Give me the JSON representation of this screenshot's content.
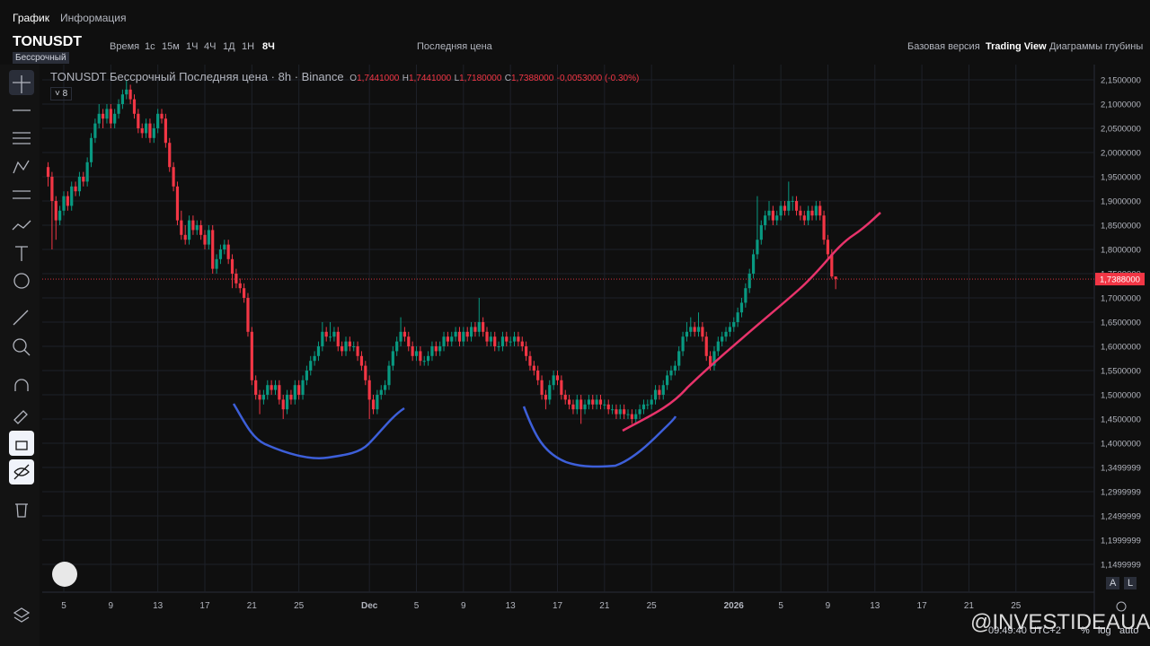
{
  "ui": {
    "tabs": [
      "График",
      "Информация"
    ],
    "symbol": "TONUSDT",
    "symbol_badge": "Бессрочный",
    "toolbar": [
      "Время",
      "1с",
      "15м",
      "1Ч",
      "4Ч",
      "1Д",
      "1Н",
      "8Ч",
      "Последняя цена"
    ],
    "right_links": [
      "Базовая версия",
      "Trading View",
      "Диаграммы глубины"
    ],
    "legend": {
      "title": "TONUSDT Бессрочный Последняя цена · 8h · Binance",
      "o_label": "O",
      "o": "1,7441000",
      "h_label": "H",
      "h": "1,7441000",
      "l_label": "L",
      "l": "1,7180000",
      "c_label": "C",
      "c": "1,7388000",
      "change": "-0,0053000 (-0.30%)"
    },
    "indicator_count": "8",
    "scale_buttons": [
      "A",
      "L"
    ],
    "footer": {
      "time": "09:49:40 UTC+2",
      "percent": "%",
      "log": "log",
      "auto": "auto"
    },
    "watermark": "@INVESTIDEAUA"
  },
  "chart_data": {
    "type": "candlestick",
    "up_color": "#089981",
    "down_color": "#f23645",
    "grid": true,
    "xlim": [
      -1.5,
      267
    ],
    "ylim": [
      1.0926,
      2.1815
    ],
    "xticks": [
      {
        "value": 4,
        "label": "5"
      },
      {
        "value": 16,
        "label": "9"
      },
      {
        "value": 28,
        "label": "13"
      },
      {
        "value": 40,
        "label": "17"
      },
      {
        "value": 52,
        "label": "21"
      },
      {
        "value": 64,
        "label": "25"
      },
      {
        "value": 82,
        "label": "Dec"
      },
      {
        "value": 94,
        "label": "5"
      },
      {
        "value": 106,
        "label": "9"
      },
      {
        "value": 118,
        "label": "13"
      },
      {
        "value": 130,
        "label": "17"
      },
      {
        "value": 142,
        "label": "21"
      },
      {
        "value": 154,
        "label": "25"
      },
      {
        "value": 175,
        "label": "2026"
      },
      {
        "value": 187,
        "label": "5"
      },
      {
        "value": 199,
        "label": "9"
      },
      {
        "value": 211,
        "label": "13"
      },
      {
        "value": 223,
        "label": "17"
      },
      {
        "value": 235,
        "label": "21"
      },
      {
        "value": 247,
        "label": "25"
      }
    ],
    "yticks": [
      {
        "value": 2.15,
        "label": "2,1500000"
      },
      {
        "value": 2.1,
        "label": "2,1000000"
      },
      {
        "value": 2.05,
        "label": "2,0500000"
      },
      {
        "value": 2.0,
        "label": "2,0000000"
      },
      {
        "value": 1.95,
        "label": "1,9500000"
      },
      {
        "value": 1.9,
        "label": "1,9000000"
      },
      {
        "value": 1.85,
        "label": "1,8500000"
      },
      {
        "value": 1.8,
        "label": "1,8000000"
      },
      {
        "value": 1.75,
        "label": "1,7500000"
      },
      {
        "value": 1.7,
        "label": "1,7000000"
      },
      {
        "value": 1.65,
        "label": "1,6500000"
      },
      {
        "value": 1.6,
        "label": "1,6000000"
      },
      {
        "value": 1.55,
        "label": "1,5500000"
      },
      {
        "value": 1.5,
        "label": "1,5000000"
      },
      {
        "value": 1.45,
        "label": "1,4500000"
      },
      {
        "value": 1.4,
        "label": "1,4000000"
      },
      {
        "value": 1.35,
        "label": "1,3499999"
      },
      {
        "value": 1.3,
        "label": "1,2999999"
      },
      {
        "value": 1.25,
        "label": "1,2499999"
      },
      {
        "value": 1.2,
        "label": "1,1999999"
      },
      {
        "value": 1.15,
        "label": "1,1499999"
      }
    ],
    "last_price": {
      "value": 1.7388,
      "label": "1,7388000"
    },
    "candles": [
      [
        1.97,
        1.98,
        1.93,
        1.95
      ],
      [
        1.95,
        1.96,
        1.8,
        1.9
      ],
      [
        1.9,
        1.91,
        1.82,
        1.86
      ],
      [
        1.86,
        1.89,
        1.85,
        1.88
      ],
      [
        1.88,
        1.92,
        1.87,
        1.91
      ],
      [
        1.91,
        1.92,
        1.88,
        1.89
      ],
      [
        1.89,
        1.94,
        1.88,
        1.93
      ],
      [
        1.93,
        1.94,
        1.91,
        1.92
      ],
      [
        1.92,
        1.96,
        1.91,
        1.95
      ],
      [
        1.95,
        1.96,
        1.93,
        1.94
      ],
      [
        1.94,
        1.99,
        1.93,
        1.98
      ],
      [
        1.98,
        2.04,
        1.97,
        2.03
      ],
      [
        2.03,
        2.07,
        2.02,
        2.06
      ],
      [
        2.06,
        2.1,
        2.05,
        2.08
      ],
      [
        2.08,
        2.09,
        2.05,
        2.07
      ],
      [
        2.07,
        2.1,
        2.06,
        2.09
      ],
      [
        2.09,
        2.1,
        2.05,
        2.06
      ],
      [
        2.06,
        2.09,
        2.05,
        2.08
      ],
      [
        2.08,
        2.11,
        2.07,
        2.1
      ],
      [
        2.1,
        2.13,
        2.09,
        2.12
      ],
      [
        2.12,
        2.15,
        2.11,
        2.13
      ],
      [
        2.13,
        2.14,
        2.1,
        2.11
      ],
      [
        2.11,
        2.12,
        2.07,
        2.08
      ],
      [
        2.08,
        2.09,
        2.04,
        2.05
      ],
      [
        2.05,
        2.06,
        2.03,
        2.04
      ],
      [
        2.04,
        2.07,
        2.03,
        2.06
      ],
      [
        2.06,
        2.07,
        2.02,
        2.03
      ],
      [
        2.03,
        2.06,
        2.02,
        2.05
      ],
      [
        2.05,
        2.09,
        2.04,
        2.08
      ],
      [
        2.08,
        2.09,
        2.06,
        2.07
      ],
      [
        2.07,
        2.08,
        2.01,
        2.02
      ],
      [
        2.02,
        2.03,
        1.96,
        1.97
      ],
      [
        1.97,
        1.98,
        1.92,
        1.93
      ],
      [
        1.93,
        1.94,
        1.85,
        1.86
      ],
      [
        1.86,
        1.88,
        1.82,
        1.83
      ],
      [
        1.83,
        1.85,
        1.81,
        1.82
      ],
      [
        1.82,
        1.87,
        1.81,
        1.86
      ],
      [
        1.86,
        1.87,
        1.83,
        1.84
      ],
      [
        1.84,
        1.86,
        1.83,
        1.85
      ],
      [
        1.85,
        1.86,
        1.82,
        1.83
      ],
      [
        1.83,
        1.84,
        1.8,
        1.81
      ],
      [
        1.81,
        1.85,
        1.8,
        1.84
      ],
      [
        1.84,
        1.85,
        1.75,
        1.76
      ],
      [
        1.76,
        1.79,
        1.75,
        1.78
      ],
      [
        1.78,
        1.81,
        1.77,
        1.8
      ],
      [
        1.8,
        1.82,
        1.79,
        1.81
      ],
      [
        1.81,
        1.82,
        1.77,
        1.78
      ],
      [
        1.78,
        1.79,
        1.72,
        1.75
      ],
      [
        1.75,
        1.76,
        1.72,
        1.73
      ],
      [
        1.73,
        1.74,
        1.71,
        1.72
      ],
      [
        1.72,
        1.73,
        1.69,
        1.7
      ],
      [
        1.7,
        1.71,
        1.62,
        1.63
      ],
      [
        1.63,
        1.64,
        1.52,
        1.53
      ],
      [
        1.53,
        1.54,
        1.49,
        1.5
      ],
      [
        1.5,
        1.51,
        1.46,
        1.49
      ],
      [
        1.49,
        1.51,
        1.48,
        1.5
      ],
      [
        1.5,
        1.53,
        1.49,
        1.52
      ],
      [
        1.52,
        1.53,
        1.5,
        1.51
      ],
      [
        1.51,
        1.53,
        1.5,
        1.52
      ],
      [
        1.52,
        1.53,
        1.48,
        1.49
      ],
      [
        1.49,
        1.5,
        1.45,
        1.47
      ],
      [
        1.47,
        1.51,
        1.46,
        1.5
      ],
      [
        1.5,
        1.51,
        1.48,
        1.49
      ],
      [
        1.49,
        1.53,
        1.48,
        1.52
      ],
      [
        1.52,
        1.53,
        1.49,
        1.5
      ],
      [
        1.5,
        1.54,
        1.49,
        1.53
      ],
      [
        1.53,
        1.56,
        1.52,
        1.55
      ],
      [
        1.55,
        1.58,
        1.54,
        1.57
      ],
      [
        1.57,
        1.59,
        1.56,
        1.58
      ],
      [
        1.58,
        1.61,
        1.57,
        1.6
      ],
      [
        1.6,
        1.65,
        1.59,
        1.63
      ],
      [
        1.63,
        1.64,
        1.61,
        1.62
      ],
      [
        1.62,
        1.65,
        1.61,
        1.62
      ],
      [
        1.62,
        1.64,
        1.61,
        1.63
      ],
      [
        1.63,
        1.64,
        1.59,
        1.6
      ],
      [
        1.6,
        1.61,
        1.58,
        1.59
      ],
      [
        1.59,
        1.62,
        1.58,
        1.61
      ],
      [
        1.61,
        1.62,
        1.59,
        1.6
      ],
      [
        1.6,
        1.61,
        1.59,
        1.6
      ],
      [
        1.6,
        1.61,
        1.57,
        1.58
      ],
      [
        1.58,
        1.59,
        1.55,
        1.56
      ],
      [
        1.56,
        1.57,
        1.52,
        1.53
      ],
      [
        1.53,
        1.54,
        1.45,
        1.49
      ],
      [
        1.49,
        1.5,
        1.46,
        1.47
      ],
      [
        1.47,
        1.51,
        1.46,
        1.5
      ],
      [
        1.5,
        1.52,
        1.49,
        1.51
      ],
      [
        1.51,
        1.53,
        1.5,
        1.52
      ],
      [
        1.52,
        1.57,
        1.51,
        1.56
      ],
      [
        1.56,
        1.6,
        1.55,
        1.59
      ],
      [
        1.59,
        1.62,
        1.58,
        1.61
      ],
      [
        1.61,
        1.66,
        1.6,
        1.63
      ],
      [
        1.63,
        1.64,
        1.61,
        1.62
      ],
      [
        1.62,
        1.63,
        1.59,
        1.6
      ],
      [
        1.6,
        1.61,
        1.57,
        1.58
      ],
      [
        1.58,
        1.6,
        1.57,
        1.59
      ],
      [
        1.59,
        1.6,
        1.56,
        1.57
      ],
      [
        1.57,
        1.58,
        1.56,
        1.57
      ],
      [
        1.57,
        1.59,
        1.56,
        1.58
      ],
      [
        1.58,
        1.61,
        1.57,
        1.6
      ],
      [
        1.6,
        1.61,
        1.58,
        1.59
      ],
      [
        1.59,
        1.61,
        1.58,
        1.6
      ],
      [
        1.6,
        1.63,
        1.59,
        1.62
      ],
      [
        1.62,
        1.63,
        1.6,
        1.61
      ],
      [
        1.61,
        1.63,
        1.6,
        1.62
      ],
      [
        1.62,
        1.64,
        1.61,
        1.63
      ],
      [
        1.63,
        1.64,
        1.6,
        1.61
      ],
      [
        1.61,
        1.64,
        1.6,
        1.63
      ],
      [
        1.63,
        1.64,
        1.61,
        1.62
      ],
      [
        1.62,
        1.65,
        1.61,
        1.64
      ],
      [
        1.64,
        1.65,
        1.62,
        1.63
      ],
      [
        1.63,
        1.7,
        1.62,
        1.65
      ],
      [
        1.65,
        1.66,
        1.62,
        1.63
      ],
      [
        1.63,
        1.64,
        1.6,
        1.61
      ],
      [
        1.61,
        1.63,
        1.6,
        1.62
      ],
      [
        1.62,
        1.63,
        1.59,
        1.6
      ],
      [
        1.6,
        1.61,
        1.59,
        1.6
      ],
      [
        1.6,
        1.63,
        1.59,
        1.62
      ],
      [
        1.62,
        1.63,
        1.6,
        1.61
      ],
      [
        1.61,
        1.62,
        1.6,
        1.61
      ],
      [
        1.61,
        1.63,
        1.6,
        1.62
      ],
      [
        1.62,
        1.63,
        1.6,
        1.61
      ],
      [
        1.61,
        1.62,
        1.59,
        1.6
      ],
      [
        1.6,
        1.61,
        1.57,
        1.58
      ],
      [
        1.58,
        1.59,
        1.55,
        1.56
      ],
      [
        1.56,
        1.57,
        1.54,
        1.55
      ],
      [
        1.55,
        1.56,
        1.52,
        1.53
      ],
      [
        1.53,
        1.54,
        1.49,
        1.5
      ],
      [
        1.5,
        1.51,
        1.47,
        1.49
      ],
      [
        1.49,
        1.53,
        1.48,
        1.52
      ],
      [
        1.52,
        1.55,
        1.51,
        1.54
      ],
      [
        1.54,
        1.55,
        1.52,
        1.53
      ],
      [
        1.53,
        1.54,
        1.49,
        1.5
      ],
      [
        1.5,
        1.51,
        1.48,
        1.49
      ],
      [
        1.49,
        1.5,
        1.47,
        1.48
      ],
      [
        1.48,
        1.49,
        1.46,
        1.47
      ],
      [
        1.47,
        1.5,
        1.46,
        1.49
      ],
      [
        1.49,
        1.5,
        1.44,
        1.47
      ],
      [
        1.47,
        1.49,
        1.46,
        1.48
      ],
      [
        1.48,
        1.5,
        1.47,
        1.49
      ],
      [
        1.49,
        1.5,
        1.47,
        1.48
      ],
      [
        1.48,
        1.5,
        1.47,
        1.49
      ],
      [
        1.49,
        1.5,
        1.47,
        1.48
      ],
      [
        1.48,
        1.49,
        1.47,
        1.48
      ],
      [
        1.48,
        1.49,
        1.46,
        1.47
      ],
      [
        1.47,
        1.48,
        1.46,
        1.47
      ],
      [
        1.47,
        1.48,
        1.45,
        1.46
      ],
      [
        1.46,
        1.48,
        1.45,
        1.47
      ],
      [
        1.47,
        1.48,
        1.45,
        1.46
      ],
      [
        1.46,
        1.47,
        1.45,
        1.46
      ],
      [
        1.46,
        1.47,
        1.44,
        1.45
      ],
      [
        1.45,
        1.47,
        1.44,
        1.46
      ],
      [
        1.46,
        1.48,
        1.45,
        1.47
      ],
      [
        1.47,
        1.49,
        1.46,
        1.48
      ],
      [
        1.48,
        1.49,
        1.47,
        1.48
      ],
      [
        1.48,
        1.5,
        1.47,
        1.49
      ],
      [
        1.49,
        1.52,
        1.48,
        1.51
      ],
      [
        1.51,
        1.52,
        1.49,
        1.5
      ],
      [
        1.5,
        1.53,
        1.49,
        1.52
      ],
      [
        1.52,
        1.55,
        1.51,
        1.54
      ],
      [
        1.54,
        1.56,
        1.53,
        1.55
      ],
      [
        1.55,
        1.57,
        1.54,
        1.56
      ],
      [
        1.56,
        1.6,
        1.55,
        1.59
      ],
      [
        1.59,
        1.63,
        1.58,
        1.62
      ],
      [
        1.62,
        1.65,
        1.61,
        1.63
      ],
      [
        1.63,
        1.66,
        1.62,
        1.64
      ],
      [
        1.64,
        1.65,
        1.62,
        1.63
      ],
      [
        1.63,
        1.67,
        1.62,
        1.64
      ],
      [
        1.64,
        1.65,
        1.61,
        1.62
      ],
      [
        1.62,
        1.63,
        1.57,
        1.58
      ],
      [
        1.58,
        1.59,
        1.55,
        1.56
      ],
      [
        1.56,
        1.6,
        1.55,
        1.59
      ],
      [
        1.59,
        1.62,
        1.58,
        1.61
      ],
      [
        1.61,
        1.63,
        1.6,
        1.62
      ],
      [
        1.62,
        1.64,
        1.61,
        1.63
      ],
      [
        1.63,
        1.65,
        1.62,
        1.64
      ],
      [
        1.64,
        1.66,
        1.63,
        1.65
      ],
      [
        1.65,
        1.68,
        1.64,
        1.67
      ],
      [
        1.67,
        1.7,
        1.66,
        1.69
      ],
      [
        1.69,
        1.73,
        1.68,
        1.72
      ],
      [
        1.72,
        1.76,
        1.71,
        1.75
      ],
      [
        1.75,
        1.8,
        1.74,
        1.79
      ],
      [
        1.79,
        1.91,
        1.78,
        1.82
      ],
      [
        1.82,
        1.86,
        1.81,
        1.85
      ],
      [
        1.85,
        1.88,
        1.84,
        1.87
      ],
      [
        1.87,
        1.9,
        1.86,
        1.88
      ],
      [
        1.88,
        1.89,
        1.85,
        1.86
      ],
      [
        1.86,
        1.88,
        1.85,
        1.87
      ],
      [
        1.87,
        1.9,
        1.86,
        1.89
      ],
      [
        1.89,
        1.9,
        1.87,
        1.88
      ],
      [
        1.88,
        1.94,
        1.87,
        1.9
      ],
      [
        1.9,
        1.91,
        1.88,
        1.9
      ],
      [
        1.9,
        1.91,
        1.87,
        1.88
      ],
      [
        1.88,
        1.89,
        1.86,
        1.87
      ],
      [
        1.87,
        1.88,
        1.85,
        1.86
      ],
      [
        1.86,
        1.89,
        1.85,
        1.88
      ],
      [
        1.88,
        1.89,
        1.86,
        1.87
      ],
      [
        1.87,
        1.9,
        1.86,
        1.89
      ],
      [
        1.89,
        1.9,
        1.86,
        1.87
      ],
      [
        1.87,
        1.88,
        1.81,
        1.82
      ],
      [
        1.82,
        1.83,
        1.78,
        1.79
      ],
      [
        1.79,
        1.8,
        1.74,
        1.7441
      ],
      [
        1.7441,
        1.7441,
        1.718,
        1.7388
      ]
    ]
  }
}
